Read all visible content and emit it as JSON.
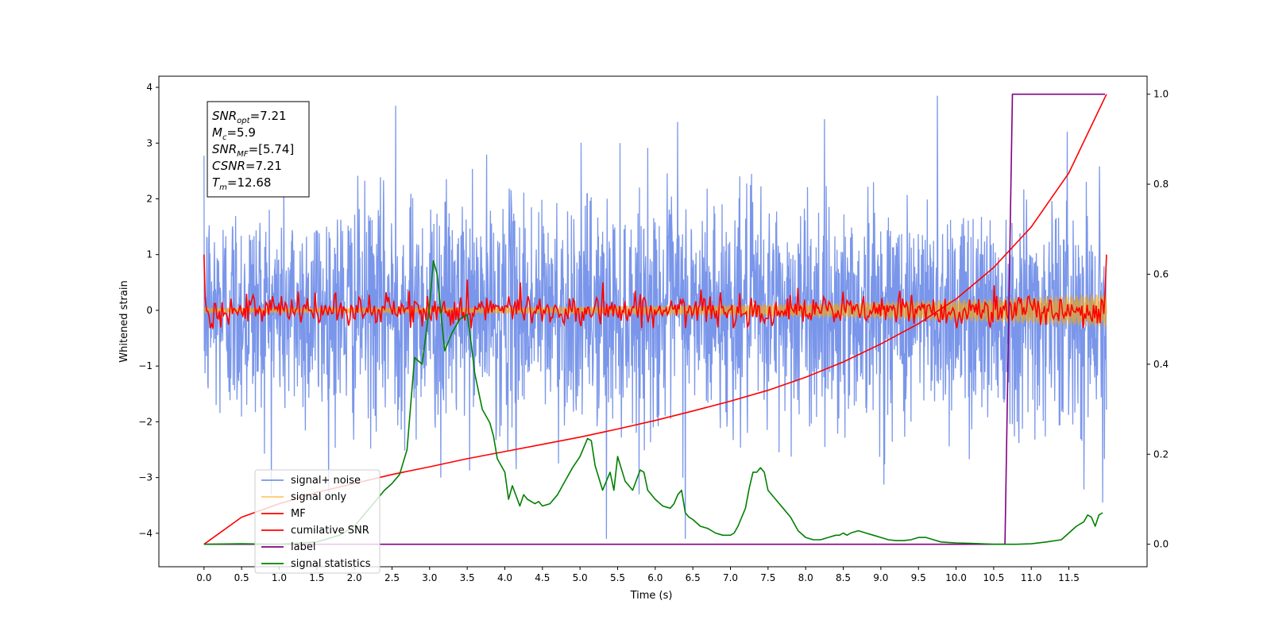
{
  "chart_data": {
    "type": "line",
    "title": "",
    "xlabel": "Time (s)",
    "ylabel": "Whitened strain",
    "ylabel_right": "",
    "xlim": [
      -0.6,
      12.54
    ],
    "ylim": [
      -4.6,
      4.2
    ],
    "ylim_right": [
      -0.05,
      1.04
    ],
    "x_ticks": [
      0.0,
      0.5,
      1.0,
      1.5,
      2.0,
      2.5,
      3.0,
      3.5,
      4.0,
      4.5,
      5.0,
      5.5,
      6.0,
      6.5,
      7.0,
      7.5,
      8.0,
      8.5,
      9.0,
      9.5,
      10.0,
      10.5,
      11.0,
      11.5
    ],
    "x_tick_labels": [
      "0.0",
      "0.5",
      "1.0",
      "1.5",
      "2.0",
      "2.5",
      "3.0",
      "3.5",
      "4.0",
      "4.5",
      "5.0",
      "5.5",
      "6.0",
      "6.5",
      "7.0",
      "7.5",
      "8.0",
      "8.5",
      "9.0",
      "9.5",
      "10.0",
      "10.5",
      "11.0",
      "11.5"
    ],
    "y_ticks": [
      -4,
      -3,
      -2,
      -1,
      0,
      1,
      2,
      3,
      4
    ],
    "y_tick_labels": [
      "−4",
      "−3",
      "−2",
      "−1",
      "0",
      "1",
      "2",
      "3",
      "4"
    ],
    "y_ticks_right": [
      0.0,
      0.2,
      0.4,
      0.6,
      0.8,
      1.0
    ],
    "y_tick_labels_right": [
      "0.0",
      "0.2",
      "0.4",
      "0.6",
      "0.8",
      "1.0"
    ],
    "grid": false,
    "legend_position": "lower-left",
    "annotation": {
      "lines": [
        {
          "main": "SNR",
          "sub": "opt",
          "value": "=7.21"
        },
        {
          "main": "M",
          "sub": "c",
          "value": "=5.9"
        },
        {
          "main": "SNR",
          "sub": "MF",
          "value": "=[5.74]"
        },
        {
          "main": "CSNR",
          "sub": "",
          "value": "=7.21"
        },
        {
          "main": "T",
          "sub": "m",
          "value": "=12.68"
        }
      ]
    },
    "series": [
      {
        "name": "signal+ noise",
        "axis": "left",
        "color": "#4169e1",
        "opacity": 0.7,
        "x_range": [
          0.0,
          12.0
        ],
        "noise_sigma": 1.0,
        "extremes": [
          [
            2.55,
            3.67
          ],
          [
            3.15,
            -3.0
          ],
          [
            4.15,
            -2.85
          ],
          [
            5.35,
            -4.1
          ],
          [
            6.3,
            3.38
          ],
          [
            6.4,
            -4.1
          ],
          [
            9.75,
            3.85
          ],
          [
            11.95,
            -3.45
          ]
        ]
      },
      {
        "name": "signal only",
        "axis": "left",
        "color": "#ffa500",
        "opacity": 0.6,
        "x_range": [
          0.0,
          12.0
        ],
        "envelope_start": 0.05,
        "envelope_end": 0.3
      },
      {
        "name": "MF",
        "axis": "left",
        "color": "#ff0000",
        "x_range": [
          0.0,
          12.0
        ],
        "noise_sigma": 0.14,
        "endpoints": [
          1.0,
          1.0
        ],
        "extremes": [
          [
            3.5,
            0.55
          ],
          [
            4.2,
            0.5
          ],
          [
            5.3,
            0.5
          ],
          [
            10.5,
            0.45
          ]
        ]
      },
      {
        "name": "cumilative SNR",
        "axis": "right",
        "color": "#ff0000",
        "x": [
          0.0,
          0.5,
          1.0,
          1.5,
          2.0,
          2.5,
          3.0,
          3.5,
          4.0,
          4.5,
          5.0,
          5.5,
          6.0,
          6.5,
          7.0,
          7.5,
          8.0,
          8.5,
          9.0,
          9.5,
          10.0,
          10.5,
          11.0,
          11.5,
          12.0
        ],
        "y": [
          0.0,
          0.06,
          0.09,
          0.115,
          0.135,
          0.155,
          0.172,
          0.19,
          0.206,
          0.222,
          0.238,
          0.256,
          0.275,
          0.296,
          0.318,
          0.342,
          0.371,
          0.405,
          0.445,
          0.49,
          0.545,
          0.615,
          0.705,
          0.825,
          1.0
        ]
      },
      {
        "name": "label",
        "axis": "right",
        "color": "#800080",
        "x": [
          0.0,
          10.65,
          10.75,
          11.98
        ],
        "y": [
          0.0,
          0.0,
          1.0,
          1.0
        ]
      },
      {
        "name": "signal statistics",
        "axis": "right",
        "color": "#008000",
        "x": [
          0.0,
          0.5,
          1.0,
          1.5,
          1.8,
          2.0,
          2.2,
          2.3,
          2.4,
          2.5,
          2.6,
          2.7,
          2.8,
          2.9,
          3.0,
          3.05,
          3.1,
          3.2,
          3.25,
          3.3,
          3.4,
          3.5,
          3.55,
          3.6,
          3.7,
          3.8,
          3.85,
          3.9,
          4.0,
          4.05,
          4.1,
          4.2,
          4.25,
          4.3,
          4.4,
          4.45,
          4.5,
          4.6,
          4.7,
          4.8,
          4.9,
          5.0,
          5.1,
          5.15,
          5.2,
          5.3,
          5.4,
          5.45,
          5.5,
          5.6,
          5.65,
          5.7,
          5.8,
          5.85,
          5.9,
          6.0,
          6.1,
          6.2,
          6.25,
          6.3,
          6.35,
          6.4,
          6.45,
          6.5,
          6.6,
          6.7,
          6.8,
          6.9,
          7.0,
          7.05,
          7.1,
          7.2,
          7.25,
          7.3,
          7.35,
          7.4,
          7.45,
          7.5,
          7.6,
          7.7,
          7.8,
          7.9,
          8.0,
          8.1,
          8.2,
          8.3,
          8.4,
          8.45,
          8.5,
          8.55,
          8.6,
          8.7,
          8.8,
          8.9,
          9.0,
          9.1,
          9.2,
          9.3,
          9.4,
          9.5,
          9.6,
          9.7,
          9.8,
          9.9,
          10.0,
          10.2,
          10.5,
          10.8,
          11.0,
          11.2,
          11.4,
          11.5,
          11.6,
          11.7,
          11.75,
          11.8,
          11.85,
          11.9,
          11.95
        ],
        "y": [
          0.0,
          0.001,
          0.0,
          0.005,
          0.02,
          0.04,
          0.08,
          0.1,
          0.12,
          0.135,
          0.155,
          0.21,
          0.415,
          0.4,
          0.53,
          0.63,
          0.6,
          0.43,
          0.45,
          0.47,
          0.5,
          0.51,
          0.45,
          0.38,
          0.3,
          0.27,
          0.24,
          0.19,
          0.16,
          0.1,
          0.13,
          0.085,
          0.11,
          0.1,
          0.09,
          0.095,
          0.085,
          0.09,
          0.11,
          0.14,
          0.17,
          0.195,
          0.235,
          0.23,
          0.175,
          0.12,
          0.16,
          0.12,
          0.195,
          0.14,
          0.13,
          0.12,
          0.165,
          0.16,
          0.12,
          0.1,
          0.085,
          0.08,
          0.09,
          0.11,
          0.12,
          0.07,
          0.06,
          0.055,
          0.04,
          0.035,
          0.025,
          0.02,
          0.02,
          0.025,
          0.04,
          0.08,
          0.125,
          0.16,
          0.16,
          0.17,
          0.16,
          0.12,
          0.1,
          0.08,
          0.06,
          0.03,
          0.015,
          0.01,
          0.01,
          0.015,
          0.02,
          0.02,
          0.025,
          0.02,
          0.025,
          0.03,
          0.025,
          0.02,
          0.015,
          0.01,
          0.008,
          0.008,
          0.01,
          0.015,
          0.015,
          0.01,
          0.005,
          0.004,
          0.003,
          0.002,
          0.0,
          0.0,
          0.001,
          0.005,
          0.01,
          0.025,
          0.04,
          0.05,
          0.065,
          0.06,
          0.04,
          0.065,
          0.07
        ]
      }
    ]
  }
}
